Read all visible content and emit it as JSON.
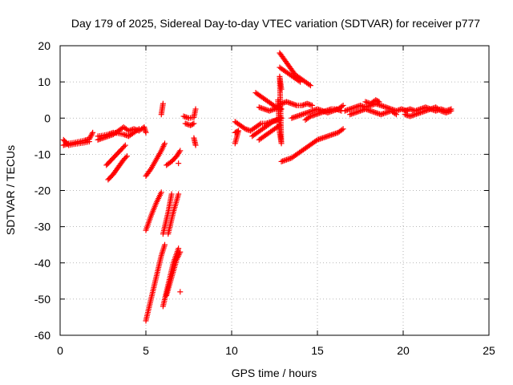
{
  "chart_data": {
    "type": "scatter",
    "title": "Day 179 of 2025, Sidereal Day-to-day VTEC variation (SDTVAR) for receiver p777",
    "xlabel": "GPS time / hours",
    "ylabel": "SDTVAR / TECUs",
    "xlim": [
      0,
      25
    ],
    "ylim": [
      -60,
      20
    ],
    "xticks": [
      "0",
      "5",
      "10",
      "15",
      "20",
      "25"
    ],
    "yticks": [
      "20",
      "10",
      "0",
      "-10",
      "-20",
      "-30",
      "-40",
      "-50",
      "-60"
    ],
    "xtick_values": [
      0,
      5,
      10,
      15,
      20,
      25
    ],
    "ytick_values": [
      20,
      10,
      0,
      -10,
      -20,
      -30,
      -40,
      -50,
      -60
    ],
    "grid": true,
    "marker": "plus",
    "color": "#ff0000",
    "series": [
      {
        "name": "SDTVAR",
        "segments": [
          [
            [
              0.2,
              -7.5
            ],
            [
              0.5,
              -7.0
            ],
            [
              0.8,
              -6.8
            ],
            [
              1.1,
              -6.5
            ],
            [
              1.4,
              -6.2
            ],
            [
              1.7,
              -5.8
            ],
            [
              1.9,
              -4.0
            ]
          ],
          [
            [
              0.2,
              -6.0
            ],
            [
              0.5,
              -7.5
            ],
            [
              0.8,
              -7.2
            ],
            [
              1.1,
              -7.0
            ],
            [
              1.4,
              -6.8
            ],
            [
              1.7,
              -6.5
            ]
          ],
          [
            [
              2.2,
              -6.0
            ],
            [
              2.5,
              -5.5
            ],
            [
              2.8,
              -5.0
            ],
            [
              3.1,
              -4.5
            ],
            [
              3.4,
              -3.5
            ],
            [
              3.7,
              -2.5
            ],
            [
              4.0,
              -3.5
            ],
            [
              4.3,
              -3.0
            ],
            [
              4.6,
              -3.5
            ],
            [
              4.9,
              -2.5
            ],
            [
              5.0,
              -4.0
            ]
          ],
          [
            [
              2.2,
              -5.0
            ],
            [
              2.5,
              -4.8
            ],
            [
              2.8,
              -4.5
            ],
            [
              3.1,
              -4.0
            ],
            [
              3.4,
              -4.2
            ],
            [
              3.7,
              -4.5
            ],
            [
              4.0,
              -5.0
            ],
            [
              4.3,
              -4.0
            ],
            [
              4.6,
              -3.0
            ]
          ],
          [
            [
              2.7,
              -13.0
            ],
            [
              3.0,
              -11.5
            ],
            [
              3.3,
              -10.0
            ],
            [
              3.6,
              -8.5
            ],
            [
              3.8,
              -7.5
            ]
          ],
          [
            [
              2.8,
              -17.0
            ],
            [
              3.1,
              -15.5
            ],
            [
              3.4,
              -13.5
            ],
            [
              3.7,
              -11.5
            ],
            [
              3.9,
              -10.5
            ]
          ],
          [
            [
              5.0,
              -16.0
            ],
            [
              5.3,
              -14.0
            ],
            [
              5.6,
              -11.5
            ],
            [
              5.9,
              -9.0
            ],
            [
              6.1,
              -7.0
            ]
          ],
          [
            [
              5.0,
              -31.0
            ],
            [
              5.3,
              -27.0
            ],
            [
              5.6,
              -23.5
            ],
            [
              5.9,
              -20.5
            ]
          ],
          [
            [
              5.0,
              -56.0
            ],
            [
              5.3,
              -50.0
            ],
            [
              5.6,
              -44.0
            ],
            [
              5.9,
              -38.0
            ],
            [
              6.1,
              -35.0
            ]
          ],
          [
            [
              6.0,
              -32.0
            ],
            [
              6.3,
              -26.0
            ],
            [
              6.5,
              -21.0
            ]
          ],
          [
            [
              6.0,
              -52.0
            ],
            [
              6.3,
              -46.0
            ],
            [
              6.6,
              -40.0
            ],
            [
              6.9,
              -36.0
            ]
          ],
          [
            [
              6.2,
              -49.0
            ],
            [
              6.5,
              -44.0
            ],
            [
              6.8,
              -39.0
            ],
            [
              7.0,
              -37.0
            ]
          ],
          [
            [
              6.3,
              -32.0
            ],
            [
              6.6,
              -26.0
            ],
            [
              6.9,
              -21.0
            ]
          ],
          [
            [
              6.2,
              -13.0
            ],
            [
              6.5,
              -12.0
            ],
            [
              6.8,
              -10.5
            ],
            [
              7.0,
              -9.0
            ]
          ],
          [
            [
              7.0,
              -48.0
            ]
          ],
          [
            [
              6.9,
              -12.5
            ]
          ],
          [
            [
              5.9,
              1.0
            ],
            [
              6.0,
              4.0
            ]
          ],
          [
            [
              7.2,
              0.5
            ],
            [
              7.5,
              0.0
            ],
            [
              7.8,
              0.2
            ],
            [
              7.9,
              2.5
            ]
          ],
          [
            [
              7.3,
              -1.5
            ],
            [
              7.6,
              -2.0
            ],
            [
              7.8,
              -1.5
            ]
          ],
          [
            [
              7.8,
              -5.5
            ],
            [
              7.9,
              -7.5
            ]
          ],
          [
            [
              10.2,
              -1.0
            ],
            [
              10.5,
              -2.0
            ],
            [
              10.8,
              -3.0
            ],
            [
              11.1,
              -3.5
            ],
            [
              11.4,
              -2.5
            ],
            [
              11.7,
              -1.5
            ],
            [
              12.0,
              -1.5
            ],
            [
              12.3,
              -1.0
            ],
            [
              12.6,
              -0.5
            ],
            [
              12.9,
              0.0
            ]
          ],
          [
            [
              10.2,
              -4.0
            ],
            [
              10.4,
              -3.5
            ],
            [
              10.2,
              -7.0
            ]
          ],
          [
            [
              11.2,
              -5.0
            ],
            [
              11.5,
              -4.0
            ],
            [
              11.8,
              -3.0
            ],
            [
              12.1,
              -2.0
            ],
            [
              12.4,
              -1.0
            ],
            [
              12.7,
              -0.5
            ]
          ],
          [
            [
              11.6,
              -6.0
            ],
            [
              11.9,
              -5.0
            ],
            [
              12.2,
              -4.0
            ],
            [
              12.5,
              -3.0
            ],
            [
              12.8,
              -2.0
            ]
          ],
          [
            [
              11.4,
              7.0
            ],
            [
              11.7,
              6.0
            ],
            [
              12.0,
              5.0
            ],
            [
              12.3,
              4.0
            ],
            [
              12.6,
              3.0
            ],
            [
              12.9,
              2.5
            ]
          ],
          [
            [
              11.6,
              3.0
            ],
            [
              11.9,
              2.5
            ],
            [
              12.2,
              2.0
            ],
            [
              12.5,
              2.5
            ],
            [
              12.8,
              3.0
            ]
          ],
          [
            [
              12.6,
              3.0
            ],
            [
              12.9,
              4.0
            ],
            [
              13.2,
              4.5
            ],
            [
              13.5,
              4.0
            ],
            [
              13.8,
              3.5
            ],
            [
              14.1,
              3.5
            ],
            [
              14.4,
              4.0
            ],
            [
              14.7,
              3.5
            ]
          ],
          [
            [
              12.9,
              -12.0
            ],
            [
              13.2,
              -11.5
            ],
            [
              13.5,
              -11.0
            ],
            [
              13.8,
              -10.0
            ],
            [
              14.1,
              -9.0
            ],
            [
              14.4,
              -8.0
            ],
            [
              14.7,
              -7.0
            ],
            [
              15.0,
              -6.0
            ],
            [
              15.3,
              -5.5
            ],
            [
              15.6,
              -5.0
            ],
            [
              15.9,
              -4.5
            ],
            [
              16.2,
              -4.0
            ],
            [
              16.5,
              -3.0
            ]
          ],
          [
            [
              12.8,
              18.0
            ],
            [
              13.1,
              16.0
            ],
            [
              13.4,
              14.0
            ],
            [
              13.7,
              12.0
            ],
            [
              14.0,
              11.0
            ],
            [
              14.3,
              10.0
            ],
            [
              14.6,
              9.0
            ]
          ],
          [
            [
              12.8,
              14.0
            ],
            [
              13.1,
              13.0
            ],
            [
              13.4,
              12.0
            ],
            [
              13.7,
              11.0
            ],
            [
              14.0,
              10.0
            ]
          ],
          [
            [
              12.7,
              5.0
            ],
            [
              12.8,
              -4.0
            ],
            [
              12.9,
              -7.0
            ],
            [
              12.8,
              11.5
            ],
            [
              12.9,
              8.0
            ]
          ],
          [
            [
              13.5,
              0.0
            ],
            [
              13.8,
              0.5
            ],
            [
              14.1,
              1.0
            ],
            [
              14.4,
              1.5
            ],
            [
              14.7,
              2.0
            ],
            [
              15.0,
              2.5
            ],
            [
              15.3,
              2.0
            ],
            [
              15.6,
              1.5
            ],
            [
              15.9,
              2.0
            ],
            [
              16.2,
              2.5
            ],
            [
              16.5,
              3.5
            ]
          ],
          [
            [
              14.3,
              -0.5
            ],
            [
              14.6,
              0.5
            ],
            [
              14.9,
              1.0
            ],
            [
              15.2,
              1.5
            ],
            [
              15.5,
              2.0
            ],
            [
              15.8,
              2.5
            ],
            [
              16.1,
              2.5
            ],
            [
              16.4,
              2.0
            ]
          ],
          [
            [
              16.6,
              2.0
            ],
            [
              16.9,
              2.5
            ],
            [
              17.2,
              3.0
            ],
            [
              17.5,
              3.5
            ],
            [
              17.8,
              3.0
            ],
            [
              18.1,
              3.5
            ],
            [
              18.4,
              4.0
            ],
            [
              18.7,
              3.5
            ],
            [
              19.0,
              3.0
            ],
            [
              19.3,
              2.5
            ],
            [
              19.6,
              2.0
            ],
            [
              19.9,
              2.5
            ],
            [
              20.2,
              2.0
            ]
          ],
          [
            [
              16.9,
              1.0
            ],
            [
              17.2,
              1.5
            ],
            [
              17.5,
              2.0
            ],
            [
              17.8,
              2.5
            ],
            [
              18.1,
              2.0
            ],
            [
              18.4,
              1.5
            ],
            [
              18.7,
              1.0
            ],
            [
              19.0,
              1.5
            ],
            [
              19.3,
              2.0
            ],
            [
              19.6,
              1.0
            ]
          ],
          [
            [
              17.8,
              4.5
            ],
            [
              18.1,
              4.0
            ],
            [
              18.4,
              5.0
            ],
            [
              18.6,
              4.5
            ]
          ],
          [
            [
              20.1,
              2.0
            ],
            [
              20.4,
              2.5
            ],
            [
              20.7,
              2.0
            ],
            [
              21.0,
              2.5
            ],
            [
              21.3,
              3.0
            ],
            [
              21.6,
              2.5
            ],
            [
              21.9,
              2.0
            ],
            [
              22.2,
              2.5
            ],
            [
              22.5,
              2.0
            ],
            [
              22.8,
              2.5
            ]
          ],
          [
            [
              20.1,
              1.0
            ],
            [
              20.4,
              0.5
            ],
            [
              20.7,
              1.0
            ],
            [
              21.0,
              1.5
            ],
            [
              21.3,
              2.0
            ],
            [
              21.6,
              2.5
            ],
            [
              21.9,
              3.0
            ],
            [
              22.2,
              2.0
            ],
            [
              22.5,
              1.5
            ],
            [
              22.8,
              2.0
            ]
          ]
        ]
      }
    ]
  }
}
